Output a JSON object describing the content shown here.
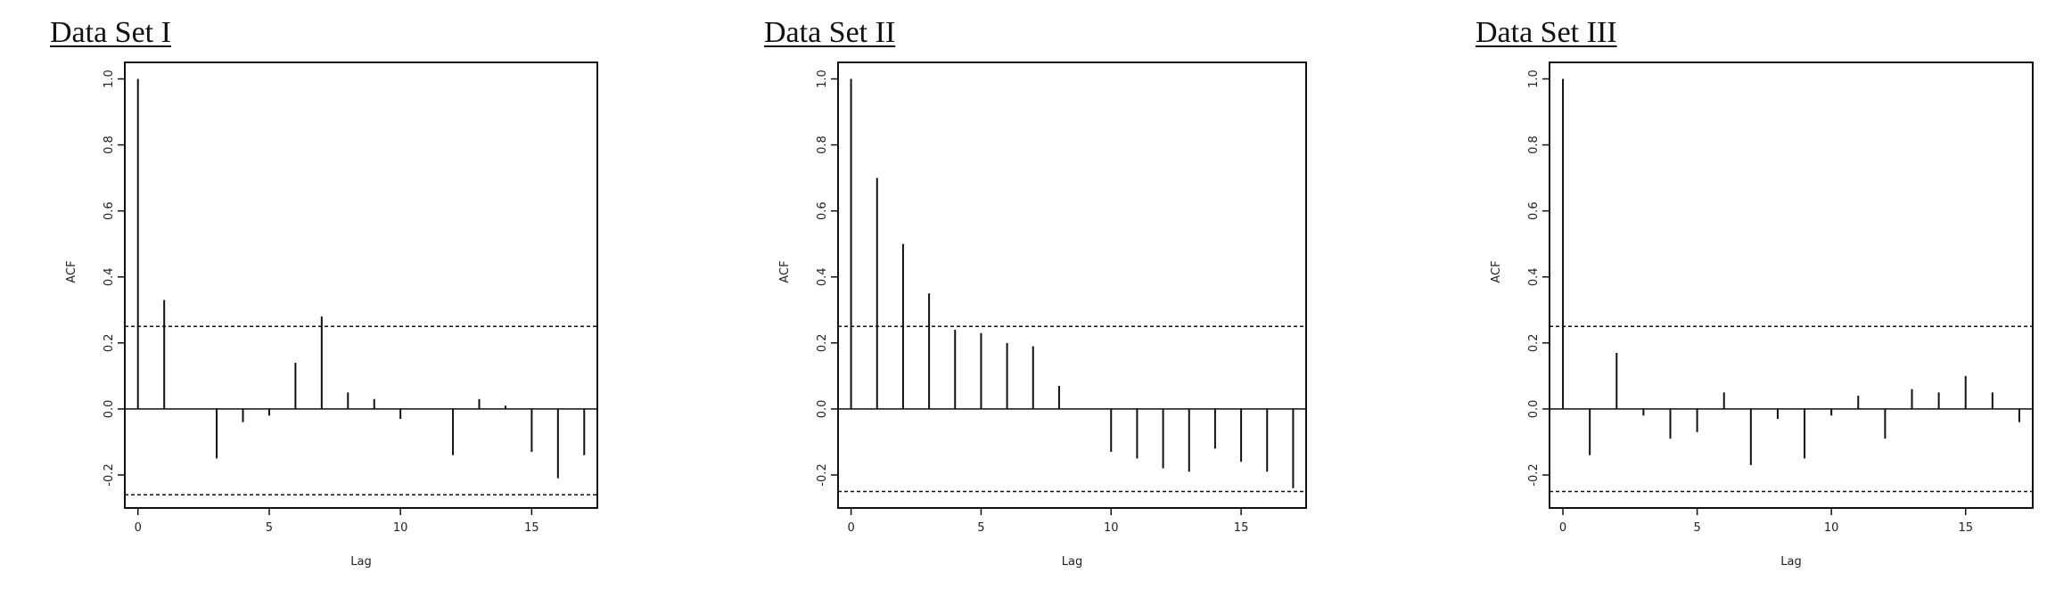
{
  "chart_data": [
    {
      "type": "bar",
      "title": "Data Set I",
      "xlabel": "Lag",
      "ylabel": "ACF",
      "xlim": [
        -0.5,
        17.5
      ],
      "ylim": [
        -0.3,
        1.05
      ],
      "xticks": [
        "0",
        "5",
        "10",
        "15"
      ],
      "yticks": [
        "-0.2",
        "0.0",
        "0.2",
        "0.4",
        "0.6",
        "0.8",
        "1.0"
      ],
      "conf_band": [
        0.25,
        -0.26
      ],
      "lags": [
        0,
        1,
        2,
        3,
        4,
        5,
        6,
        7,
        8,
        9,
        10,
        11,
        12,
        13,
        14,
        15,
        16,
        17
      ],
      "values": [
        1.0,
        0.33,
        0.0,
        -0.15,
        -0.04,
        -0.02,
        0.14,
        0.28,
        0.05,
        0.03,
        -0.03,
        0.0,
        -0.14,
        0.03,
        0.01,
        -0.13,
        -0.21,
        -0.14
      ]
    },
    {
      "type": "bar",
      "title": "Data Set II",
      "xlabel": "Lag",
      "ylabel": "ACF",
      "xlim": [
        -0.5,
        17.5
      ],
      "ylim": [
        -0.3,
        1.05
      ],
      "xticks": [
        "0",
        "5",
        "10",
        "15"
      ],
      "yticks": [
        "-0.2",
        "0.0",
        "0.2",
        "0.4",
        "0.6",
        "0.8",
        "1.0"
      ],
      "conf_band": [
        0.25,
        -0.25
      ],
      "lags": [
        0,
        1,
        2,
        3,
        4,
        5,
        6,
        7,
        8,
        9,
        10,
        11,
        12,
        13,
        14,
        15,
        16,
        17
      ],
      "values": [
        1.0,
        0.7,
        0.5,
        0.35,
        0.24,
        0.23,
        0.2,
        0.19,
        0.07,
        0.0,
        -0.13,
        -0.15,
        -0.18,
        -0.19,
        -0.12,
        -0.16,
        -0.19,
        -0.24
      ]
    },
    {
      "type": "bar",
      "title": "Data Set III",
      "xlabel": "Lag",
      "ylabel": "ACF",
      "xlim": [
        -0.5,
        17.5
      ],
      "ylim": [
        -0.3,
        1.05
      ],
      "xticks": [
        "0",
        "5",
        "10",
        "15"
      ],
      "yticks": [
        "-0.2",
        "0.0",
        "0.2",
        "0.4",
        "0.6",
        "0.8",
        "1.0"
      ],
      "conf_band": [
        0.25,
        -0.25
      ],
      "lags": [
        0,
        1,
        2,
        3,
        4,
        5,
        6,
        7,
        8,
        9,
        10,
        11,
        12,
        13,
        14,
        15,
        16,
        17
      ],
      "values": [
        1.0,
        -0.14,
        0.17,
        -0.02,
        -0.09,
        -0.07,
        0.05,
        -0.17,
        -0.03,
        -0.15,
        -0.02,
        0.04,
        -0.09,
        0.06,
        0.05,
        0.1,
        0.05,
        -0.04
      ]
    }
  ]
}
